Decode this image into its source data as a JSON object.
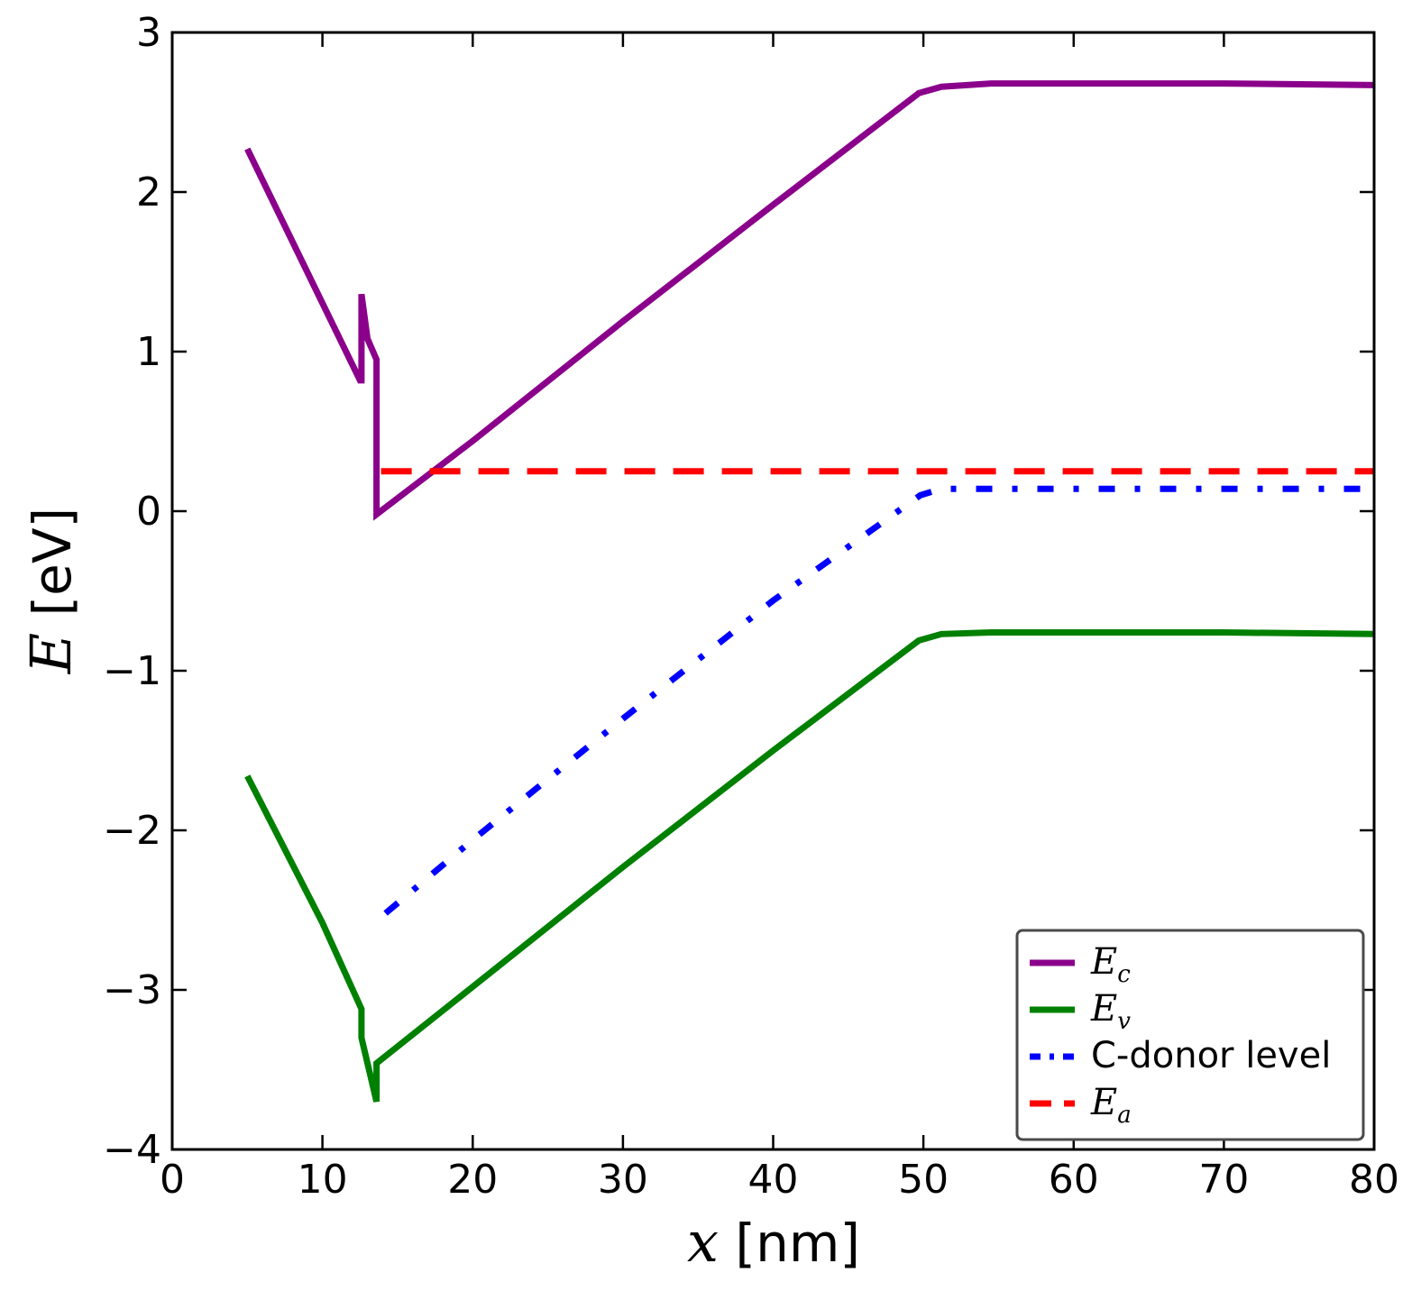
{
  "chart_data": {
    "type": "line",
    "xlabel": {
      "var": "x",
      "unit": " [nm]"
    },
    "ylabel": {
      "var": "E",
      "unit": " [eV]"
    },
    "xlim": [
      0,
      80
    ],
    "ylim": [
      -4,
      3
    ],
    "xticks": [
      0,
      10,
      20,
      30,
      40,
      50,
      60,
      70,
      80
    ],
    "yticks": [
      -4,
      -3,
      -2,
      -1,
      0,
      1,
      2,
      3
    ],
    "xtick_labels": [
      "0",
      "10",
      "20",
      "30",
      "40",
      "50",
      "60",
      "70",
      "80"
    ],
    "ytick_labels": [
      "−4",
      "−3",
      "−2",
      "−1",
      "0",
      "1",
      "2",
      "3"
    ],
    "grid": false,
    "legend_position": "lower-right",
    "series": [
      {
        "id": "Ec",
        "name_main": "E",
        "name_sub": "c",
        "color": "#8B008B",
        "style": "solid",
        "x": [
          5.0,
          12.5,
          12.6,
          12.6,
          13.0,
          13.6,
          13.6,
          13.6,
          20,
          30,
          40,
          49.7,
          51.2,
          54.5,
          60,
          70,
          80
        ],
        "y": [
          2.27,
          0.82,
          0.82,
          1.36,
          1.08,
          0.95,
          0.2,
          -0.02,
          0.44,
          1.19,
          1.92,
          2.62,
          2.66,
          2.68,
          2.68,
          2.68,
          2.67
        ]
      },
      {
        "id": "Ev",
        "name_main": "E",
        "name_sub": "v",
        "color": "#008000",
        "style": "solid",
        "x": [
          5.0,
          10.0,
          12.6,
          12.6,
          13.0,
          13.6,
          13.6,
          13.6,
          20,
          30,
          40,
          49.7,
          51.2,
          54.5,
          60,
          70,
          80
        ],
        "y": [
          -1.66,
          -2.58,
          -3.12,
          -3.3,
          -3.46,
          -3.7,
          -3.62,
          -3.46,
          -2.98,
          -2.23,
          -1.5,
          -0.81,
          -0.77,
          -0.76,
          -0.76,
          -0.76,
          -0.77
        ]
      },
      {
        "id": "donor",
        "name": "C-donor level",
        "color": "#0000FF",
        "style": "dashdot",
        "x": [
          14.2,
          20,
          30,
          40,
          49.8,
          51.2,
          60,
          70,
          80
        ],
        "y": [
          -2.52,
          -2.06,
          -1.3,
          -0.56,
          0.1,
          0.14,
          0.14,
          0.14,
          0.14
        ]
      },
      {
        "id": "Ea",
        "name_main": "E",
        "name_sub": "a",
        "color": "#FF0000",
        "style": "dashed",
        "x": [
          13.9,
          80
        ],
        "y": [
          0.25,
          0.25
        ]
      }
    ]
  }
}
